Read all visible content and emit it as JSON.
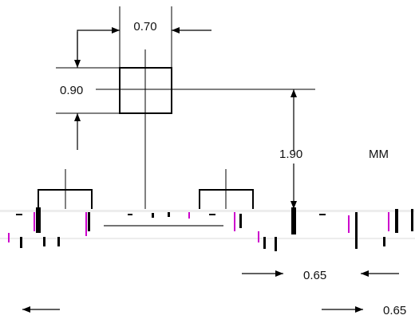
{
  "drawing": {
    "dimensions": {
      "pad_width": "0.70",
      "pad_height": "0.90",
      "pad_to_row": "1.90",
      "lead_pitch": "0.65",
      "lead_pitch_lower": "0.65"
    },
    "units": "MM"
  },
  "colors": {
    "line": "#000000",
    "magenta": "#cc00cc",
    "background": "#ffffff"
  }
}
